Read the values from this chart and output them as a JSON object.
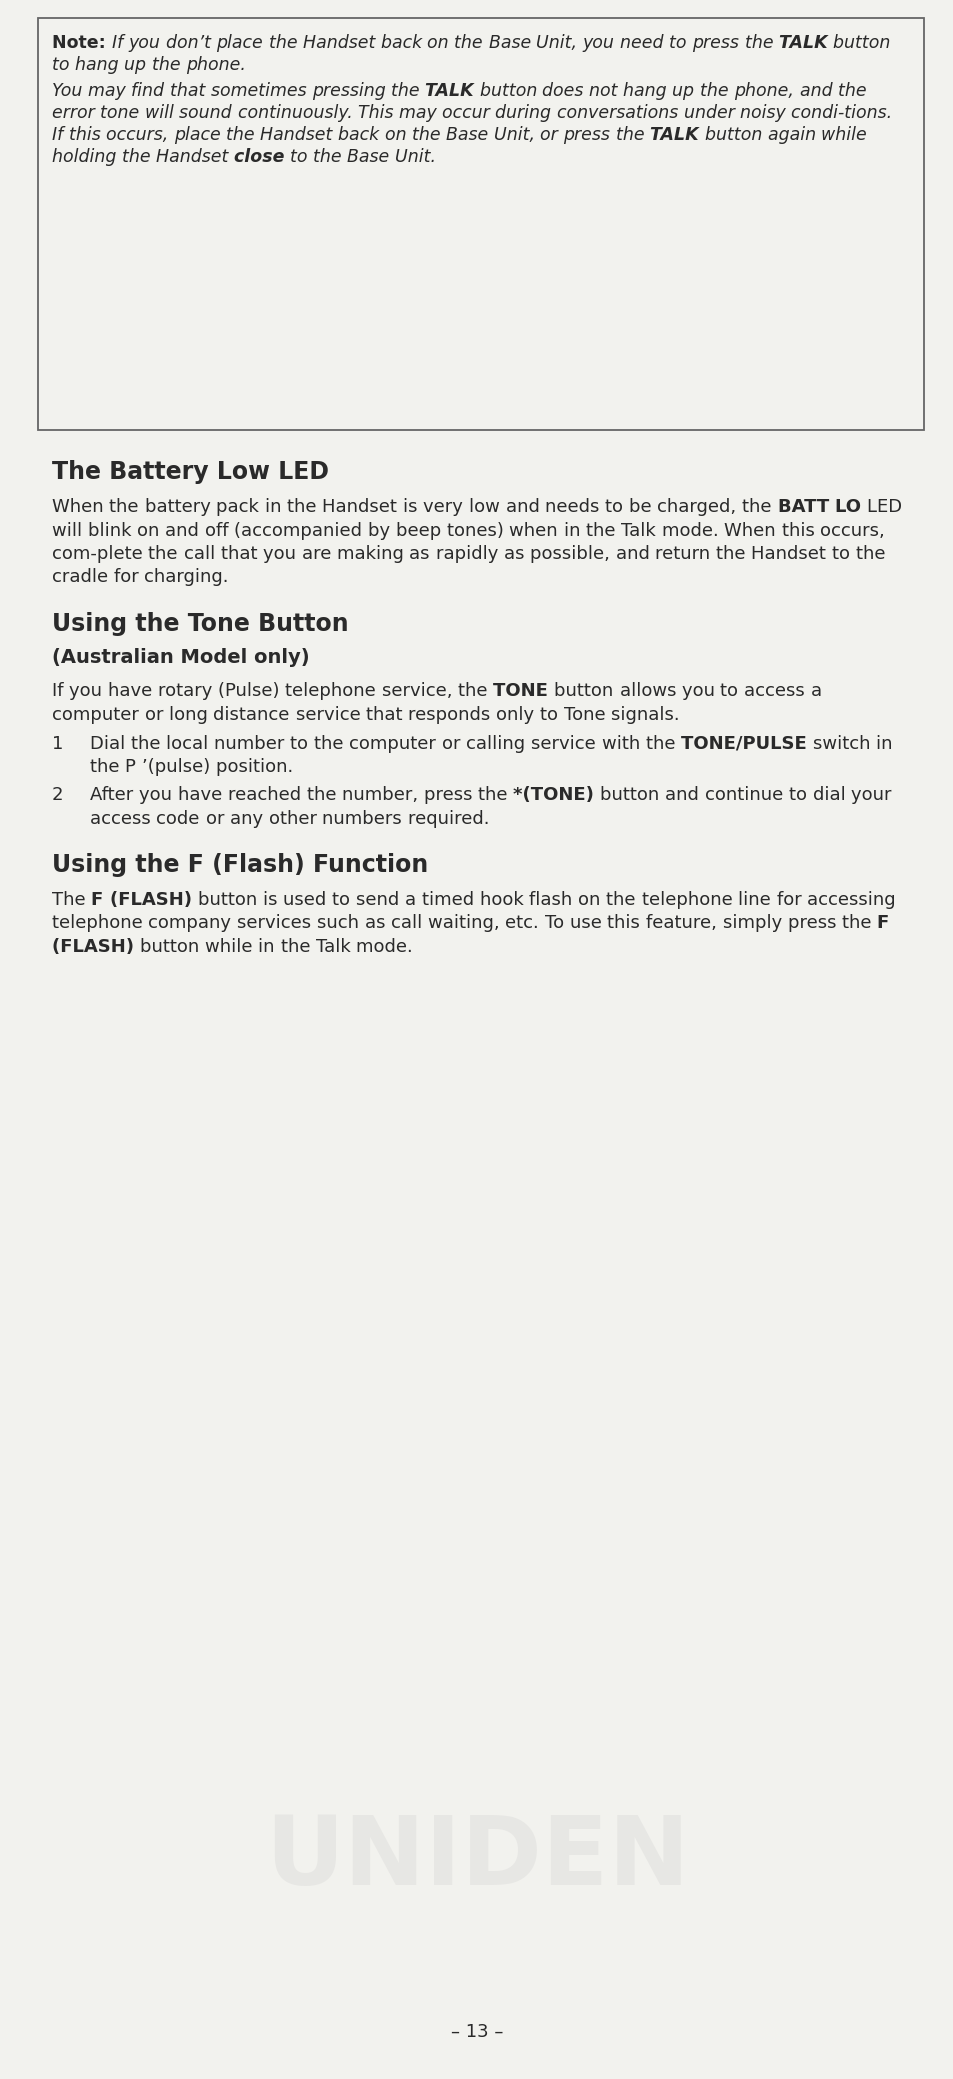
{
  "bg_color": "#f2f2ee",
  "text_color": "#2a2a2a",
  "note_edge_color": "#666666",
  "note_face_color": "#f2f2ee",
  "page_number": "– 13 –",
  "watermark_color": "#c8c8c8",
  "note_para1": [
    {
      "text": "Note:",
      "bold": true,
      "italic": false
    },
    {
      "text": " If you don’t place the Handset back on the Base Unit, you need to press the ",
      "bold": false,
      "italic": true
    },
    {
      "text": "TALK",
      "bold": true,
      "italic": true
    },
    {
      "text": " button to hang up the phone.",
      "bold": false,
      "italic": true
    }
  ],
  "note_para2": [
    {
      "text": "You may find that sometimes pressing the ",
      "bold": false,
      "italic": true
    },
    {
      "text": "TALK",
      "bold": true,
      "italic": true
    },
    {
      "text": " button does not hang up the phone, and the error tone will sound continuously. This may occur during conversations under noisy condi-tions. If this occurs, place the Handset back on the Base Unit, or press the ",
      "bold": false,
      "italic": true
    },
    {
      "text": "TALK",
      "bold": true,
      "italic": true
    },
    {
      "text": " button again while holding the Handset ",
      "bold": false,
      "italic": true
    },
    {
      "text": "close",
      "bold": true,
      "italic": true
    },
    {
      "text": " to the Base Unit.",
      "bold": false,
      "italic": true
    }
  ],
  "section1_title": "The Battery Low LED",
  "section1_body": [
    {
      "text": "When the battery pack in the Handset is very low and needs to be charged, the ",
      "bold": false
    },
    {
      "text": "BATT LO",
      "bold": true
    },
    {
      "text": " LED will blink on and off (accompanied by beep tones) when in the Talk mode. When this occurs, com-plete the call that you are making as rapidly as possible, and return the Handset to the cradle for charging.",
      "bold": false
    }
  ],
  "section2_title": "Using the Tone Button",
  "section2_subtitle": "(Australian Model only)",
  "section2_body": [
    {
      "text": "If you have rotary (Pulse) telephone service, the ",
      "bold": false
    },
    {
      "text": "TONE",
      "bold": true
    },
    {
      "text": " button allows you to access a computer or long distance service that responds only to Tone signals.",
      "bold": false
    }
  ],
  "section2_item1": [
    {
      "text": "Dial the local number to the computer or calling service with the ",
      "bold": false
    },
    {
      "text": "TONE/PULSE",
      "bold": true
    },
    {
      "text": " switch in the P ’(pulse) position.",
      "bold": false
    }
  ],
  "section2_item2": [
    {
      "text": "After you have reached the number, press the ",
      "bold": false
    },
    {
      "text": "*(TONE)",
      "bold": true
    },
    {
      "text": " button and continue to dial your access code or any other numbers required.",
      "bold": false
    }
  ],
  "section3_title": "Using the F (Flash) Function",
  "section3_body": [
    {
      "text": "The ",
      "bold": false
    },
    {
      "text": "F (FLASH)",
      "bold": true
    },
    {
      "text": " button is used to send a timed hook flash on the telephone line for accessing telephone company services such as call waiting, etc. To use this feature, simply press the ",
      "bold": false
    },
    {
      "text": "F\n(FLASH)",
      "bold": true
    },
    {
      "text": " button while in the Talk mode.",
      "bold": false
    }
  ]
}
